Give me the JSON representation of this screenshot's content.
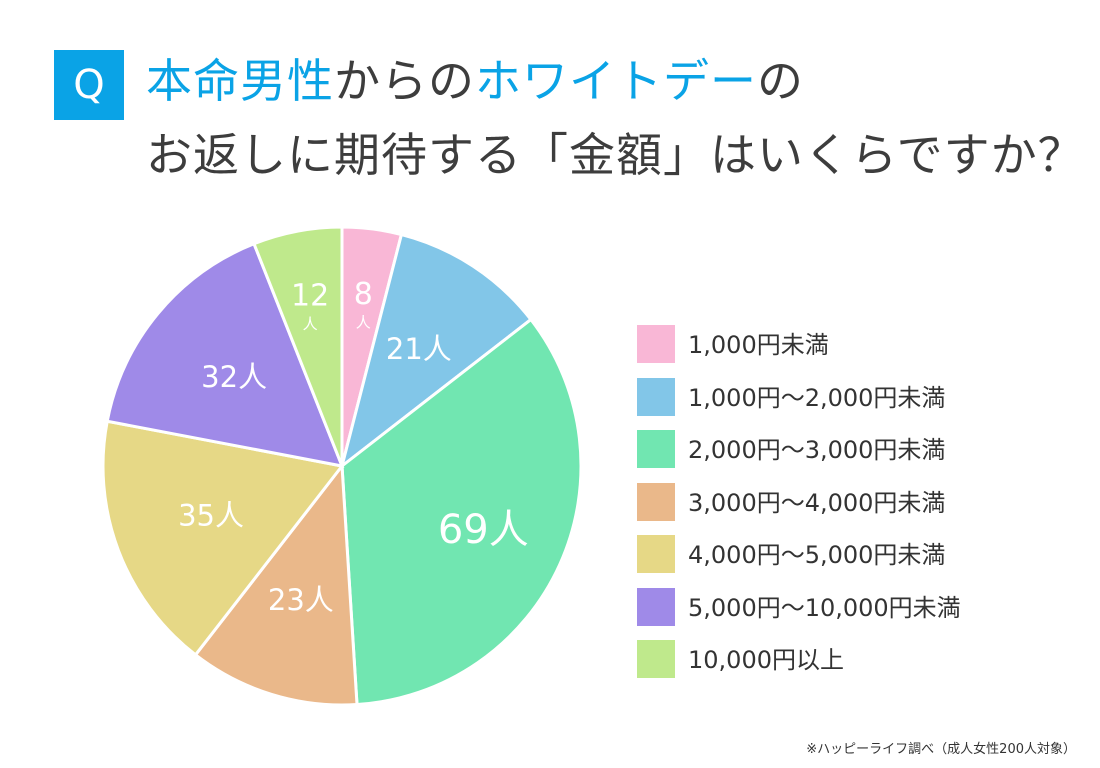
{
  "question_badge": "Q",
  "title": {
    "line1_part1": "本命男性",
    "line1_part2": "からの",
    "line1_part3": "ホワイトデー",
    "line1_part4": "の",
    "line2": "お返しに期待する「金額」はいくらですか？"
  },
  "source_note": "※ハッピーライフ調べ（成人女性200人対象）",
  "colors": {
    "accent": "#0aa3e6",
    "title_text": "#3d3d3d"
  },
  "chart_data": {
    "type": "pie",
    "title": "本命男性からのホワイトデーのお返しに期待する「金額」はいくらですか？",
    "unit": "人",
    "total": 200,
    "start_angle_deg": 0,
    "direction": "clockwise",
    "legend_position": "right",
    "slices": [
      {
        "label": "1,000円未満",
        "value": 8,
        "display": "8",
        "unit_label": "人",
        "color": "#f9b7d6"
      },
      {
        "label": "1,000円〜2,000円未満",
        "value": 21,
        "display": "21人",
        "color": "#82c6e8"
      },
      {
        "label": "2,000円〜3,000円未満",
        "value": 69,
        "display": "69人",
        "color": "#71e6b1"
      },
      {
        "label": "3,000円〜4,000円未満",
        "value": 23,
        "display": "23人",
        "color": "#eab88a"
      },
      {
        "label": "4,000円〜5,000円未満",
        "value": 35,
        "display": "35人",
        "color": "#e6d886"
      },
      {
        "label": "5,000円〜10,000円未満",
        "value": 32,
        "display": "32人",
        "color": "#9f8ae8"
      },
      {
        "label": "10,000円以上",
        "value": 12,
        "display": "12",
        "unit_label": "人",
        "color": "#bfe98c"
      }
    ]
  }
}
